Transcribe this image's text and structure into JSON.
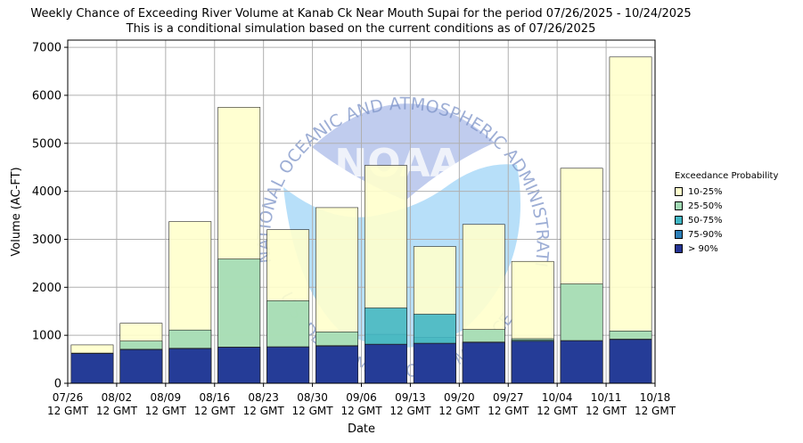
{
  "title": "Weekly Chance of Exceeding River Volume at Kanab Ck Near Mouth Supai for the period 07/26/2025 - 10/24/2025",
  "subtitle": "This is a conditional simulation based on the current conditions as of 07/26/2025",
  "watermark": {
    "text_top": "NATIONAL OCEANIC AND ATMOSPHERIC ADMINISTRATION",
    "text_bottom": "U.S. DEPARTMENT OF COMMERCE",
    "logo": "NOAA"
  },
  "chart_data": {
    "type": "bar",
    "xlabel": "Date",
    "ylabel": "Volume (AC-FT)",
    "ylim": [
      0,
      7150
    ],
    "yticks": [
      0,
      1000,
      2000,
      3000,
      4000,
      5000,
      6000,
      7000
    ],
    "xtick_labels": [
      [
        "07/26",
        "12 GMT"
      ],
      [
        "08/02",
        "12 GMT"
      ],
      [
        "08/09",
        "12 GMT"
      ],
      [
        "08/16",
        "12 GMT"
      ],
      [
        "08/23",
        "12 GMT"
      ],
      [
        "08/30",
        "12 GMT"
      ],
      [
        "09/06",
        "12 GMT"
      ],
      [
        "09/13",
        "12 GMT"
      ],
      [
        "09/20",
        "12 GMT"
      ],
      [
        "09/27",
        "12 GMT"
      ],
      [
        "10/04",
        "12 GMT"
      ],
      [
        "10/11",
        "12 GMT"
      ],
      [
        "10/18",
        "12 GMT"
      ]
    ],
    "grid": true,
    "legend_title": "Exceedance Probability",
    "legend_position": "right",
    "series": [
      {
        "name": "10-25%",
        "color": "#ffffcc",
        "values": [
          800,
          1250,
          3370,
          5750,
          3200,
          3660,
          4540,
          2850,
          3310,
          2540,
          4480,
          6800
        ]
      },
      {
        "name": "25-50%",
        "color": "#a1dab4",
        "values": [
          630,
          880,
          1110,
          2590,
          1720,
          1070,
          1020,
          960,
          1120,
          930,
          2070,
          1090
        ]
      },
      {
        "name": "50-75%",
        "color": "#41b6c4",
        "values": [
          625,
          710,
          730,
          755,
          760,
          785,
          1570,
          1440,
          860,
          900,
          890,
          920
        ]
      },
      {
        "name": "75-90%",
        "color": "#2c7fb8",
        "values": [
          622,
          705,
          725,
          752,
          758,
          780,
          815,
          835,
          855,
          880,
          888,
          915
        ]
      },
      {
        "name": "> 90%",
        "color": "#253494",
        "values": [
          620,
          700,
          720,
          750,
          755,
          775,
          810,
          830,
          850,
          875,
          885,
          910
        ]
      }
    ]
  }
}
